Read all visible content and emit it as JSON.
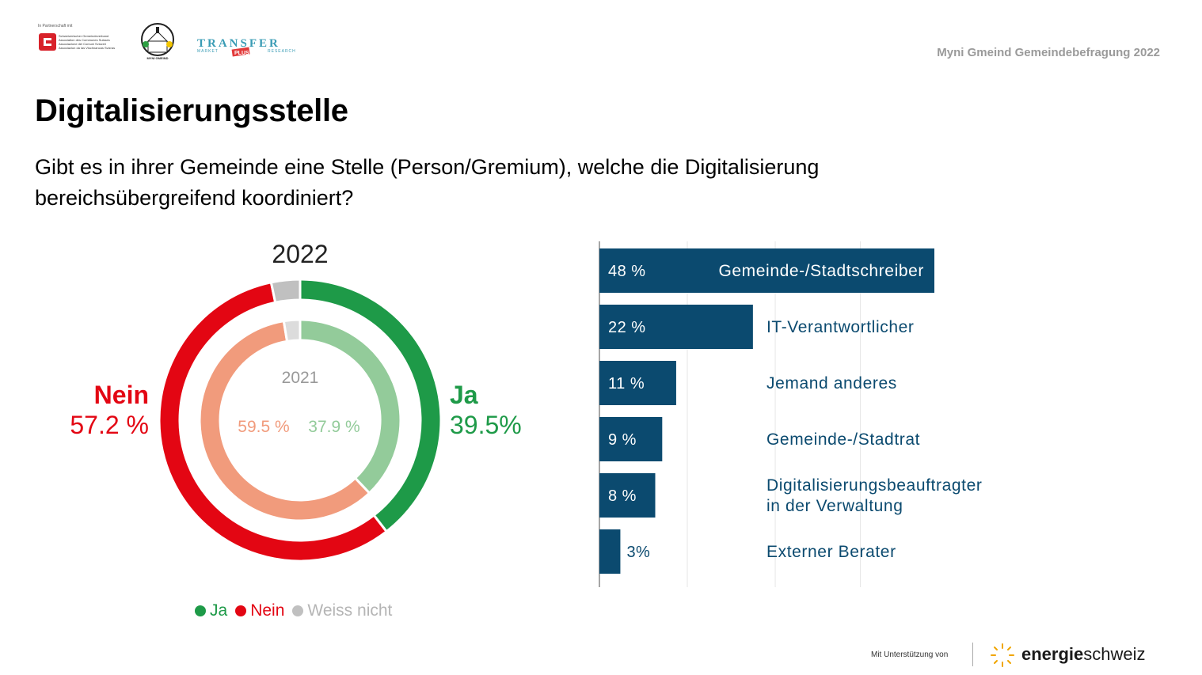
{
  "header": {
    "partner_text": "In Partnerschaft mit",
    "logo_gemeinde": "Schweizerischer Gemeindeverband Association des Communes Suisses Associazione dei Comuni Svizzeri Associaziun da las Vischnancas Svizras",
    "logo_myni": "MYNI GMEIND",
    "logo_transfer_top": "TRANSFER",
    "logo_transfer_left": "MARKET",
    "logo_transfer_plus": "PLUS",
    "logo_transfer_right": "RESEARCH",
    "survey_title": "Myni Gmeind Gemeindebefragung 2022"
  },
  "title": "Digitalisierungsstelle",
  "question": "Gibt es in ihrer Gemeinde eine Stelle (Person/Gremium), welche die Digitalisierung bereichsübergreifend koordiniert?",
  "colors": {
    "ja": "#1e9a48",
    "nein": "#e30613",
    "weiss_nicht": "#c0c0c0",
    "ja_2021": "#93cb9a",
    "nein_2021": "#f19b7c",
    "weiss_2021": "#dcdcdc",
    "bar": "#0b4a6f"
  },
  "chart_data": [
    {
      "type": "pie",
      "title": "2022",
      "inner_title": "2021",
      "categories": [
        "Ja",
        "Nein",
        "Weiss nicht"
      ],
      "series": [
        {
          "name": "2022",
          "values": [
            39.5,
            57.2,
            3.3
          ],
          "labels": [
            "39.5%",
            "57.2 %",
            ""
          ]
        },
        {
          "name": "2021",
          "values": [
            37.9,
            59.5,
            2.6
          ],
          "labels": [
            "37.9 %",
            "59.5 %",
            ""
          ]
        }
      ],
      "outer_labels": {
        "ja_name": "Ja",
        "ja_value": "39.5%",
        "nein_name": "Nein",
        "nein_value": "57.2 %"
      },
      "legend": [
        "Ja",
        "Nein",
        "Weiss nicht"
      ],
      "legend_position": "bottom"
    },
    {
      "type": "bar",
      "orientation": "horizontal",
      "categories": [
        "Gemeinde-/Stadtschreiber",
        "IT-Verantwortlicher",
        "Jemand anderes",
        "Gemeinde-/Stadtrat",
        "Digitalisierungsbeauftragter in der Verwaltung",
        "Externer Berater"
      ],
      "category_lines": [
        [
          "Gemeinde-/Stadtschreiber"
        ],
        [
          "IT-Verantwortlicher"
        ],
        [
          "Jemand anderes"
        ],
        [
          "Gemeinde-/Stadtrat"
        ],
        [
          "Digitalisierungsbeauftragter",
          "in der Verwaltung"
        ],
        [
          "Externer Berater"
        ]
      ],
      "values": [
        48,
        22,
        11,
        9,
        8,
        3
      ],
      "value_labels": [
        "48 %",
        "22 %",
        "11 %",
        "9 %",
        "8 %",
        "3%"
      ],
      "xlim": [
        0,
        60
      ],
      "grid": true
    }
  ],
  "footer": {
    "support_text": "Mit Unterstützung von",
    "brand_bold": "energie",
    "brand_regular": "schweiz"
  }
}
